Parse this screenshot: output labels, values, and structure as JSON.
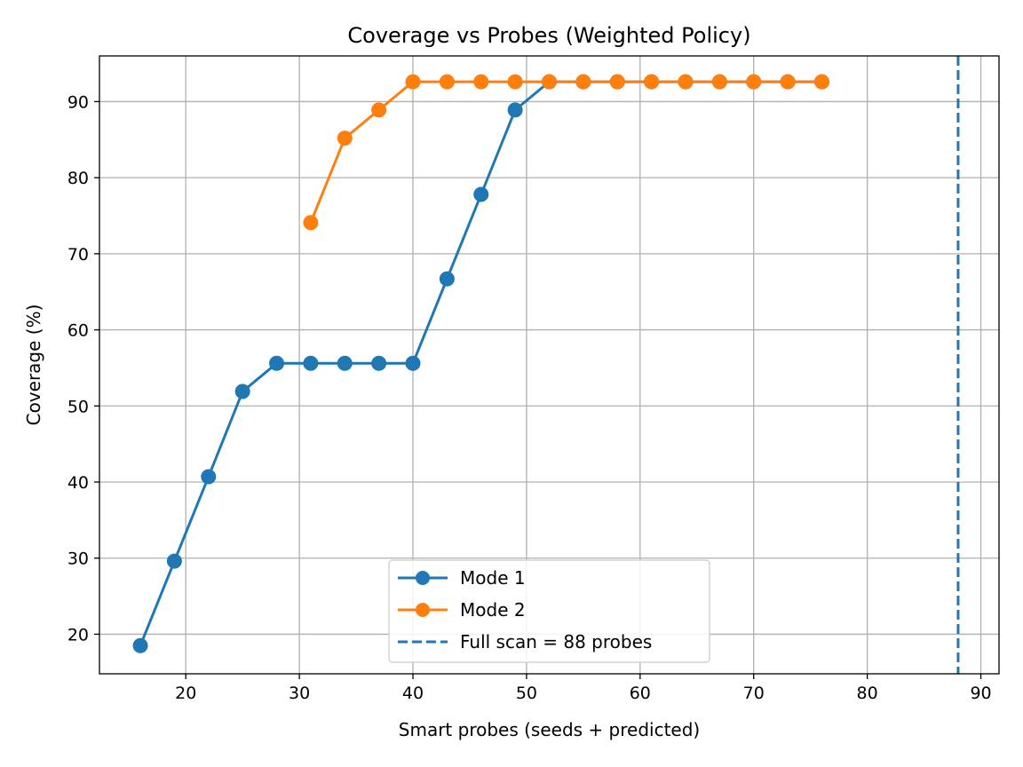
{
  "chart_data": {
    "type": "line",
    "title": "Coverage vs Probes (Weighted Policy)",
    "xlabel": "Smart probes (seeds + predicted)",
    "ylabel": "Coverage (%)",
    "xlim": [
      12.4,
      91.6
    ],
    "ylim": [
      14.8,
      96.0
    ],
    "xticks": [
      20,
      30,
      40,
      50,
      60,
      70,
      80,
      90
    ],
    "yticks": [
      20,
      30,
      40,
      50,
      60,
      70,
      80,
      90
    ],
    "grid": true,
    "legend_position": "lower-center",
    "series": [
      {
        "name": "Mode 1",
        "color": "#1f77b4",
        "marker": "circle",
        "x": [
          16,
          19,
          22,
          25,
          28,
          31,
          34,
          37,
          40,
          43,
          46,
          49,
          52,
          55,
          58,
          61,
          64,
          67,
          70,
          73,
          76
        ],
        "y": [
          18.5,
          29.6,
          40.7,
          51.9,
          55.6,
          55.6,
          55.6,
          55.6,
          55.6,
          66.7,
          77.8,
          88.9,
          92.6,
          92.6,
          92.6,
          92.6,
          92.6,
          92.6,
          92.6,
          92.6,
          92.6
        ]
      },
      {
        "name": "Mode 2",
        "color": "#ff7f0e",
        "marker": "circle",
        "x": [
          31,
          34,
          37,
          40,
          43,
          46,
          49,
          52,
          55,
          58,
          61,
          64,
          67,
          70,
          73,
          76
        ],
        "y": [
          74.1,
          85.2,
          88.9,
          92.6,
          92.6,
          92.6,
          92.6,
          92.6,
          92.6,
          92.6,
          92.6,
          92.6,
          92.6,
          92.6,
          92.6,
          92.6
        ]
      }
    ],
    "reference_lines": [
      {
        "name": "Full scan = 88 probes",
        "orientation": "vertical",
        "x": 88,
        "color": "#1f77b4",
        "style": "dashed"
      }
    ]
  }
}
